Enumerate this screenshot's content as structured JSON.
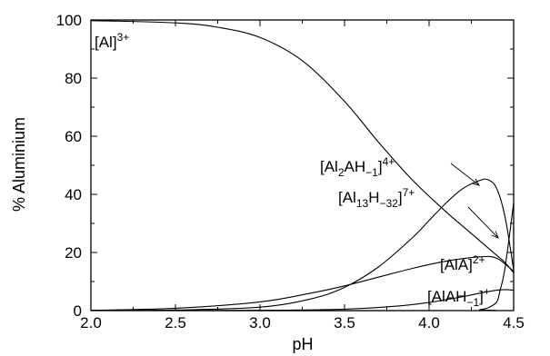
{
  "chart_data": {
    "type": "line",
    "title": "",
    "xlabel": "pH",
    "ylabel": "% Aluminium",
    "xlim": [
      2.0,
      4.5
    ],
    "ylim": [
      0,
      100
    ],
    "xticks": [
      "2.0",
      "2.5",
      "3.0",
      "3.5",
      "4.0",
      "4.5"
    ],
    "yticks": [
      "0",
      "20",
      "40",
      "60",
      "80",
      "100"
    ],
    "grid": false,
    "legend": "none",
    "series": [
      {
        "x": [
          2.0,
          2.5,
          2.75,
          3.0,
          3.25,
          3.5,
          3.7,
          3.9,
          4.1,
          4.2,
          4.3,
          4.4,
          4.45,
          4.5
        ],
        "y": [
          99.8,
          99.0,
          97.5,
          94.0,
          86.0,
          72.0,
          58.0,
          45.0,
          34.0,
          29.0,
          24.0,
          19.0,
          16.5,
          13.0
        ]
      },
      {
        "x": [
          2.0,
          2.5,
          3.0,
          3.3,
          3.5,
          3.7,
          3.9,
          4.0,
          4.1,
          4.2,
          4.3,
          4.35,
          4.4,
          4.45,
          4.5
        ],
        "y": [
          0.0,
          0.2,
          1.2,
          4.0,
          8.0,
          15.0,
          25.0,
          31.0,
          37.0,
          42.0,
          44.8,
          45.0,
          42.0,
          32.0,
          14.0
        ]
      },
      {
        "x": [
          2.0,
          4.2,
          4.3,
          4.35,
          4.4,
          4.42,
          4.45,
          4.5
        ],
        "y": [
          0.0,
          0.0,
          0.3,
          1.0,
          3.0,
          7.0,
          15.0,
          37.0
        ]
      },
      {
        "x": [
          2.0,
          2.5,
          3.0,
          3.3,
          3.5,
          3.7,
          3.9,
          4.1,
          4.3,
          4.4,
          4.5
        ],
        "y": [
          0.1,
          0.8,
          3.0,
          6.0,
          8.5,
          11.5,
          14.5,
          17.0,
          18.5,
          18.0,
          13.5
        ]
      },
      {
        "x": [
          2.0,
          3.0,
          3.5,
          3.8,
          4.0,
          4.2,
          4.3,
          4.4,
          4.45,
          4.5
        ],
        "y": [
          0.0,
          0.1,
          0.5,
          1.5,
          2.8,
          4.8,
          6.0,
          7.0,
          7.2,
          7.0
        ]
      }
    ],
    "annotations": [
      {
        "key": "al",
        "base": "[Al]",
        "sup": "3+"
      },
      {
        "key": "al2ah",
        "parts": [
          [
            "[Al",
            "n"
          ],
          [
            "2",
            "sub"
          ],
          [
            "AH",
            "n"
          ],
          [
            "−1",
            "sub"
          ],
          [
            "]",
            "n"
          ],
          [
            "4+",
            "sup"
          ]
        ]
      },
      {
        "key": "al13",
        "parts": [
          [
            "[Al",
            "n"
          ],
          [
            "13",
            "sub"
          ],
          [
            "H",
            "n"
          ],
          [
            "−32",
            "sub"
          ],
          [
            "]",
            "n"
          ],
          [
            "7+",
            "sup"
          ]
        ]
      },
      {
        "key": "ala",
        "base": "[AlA]",
        "sup": "2+"
      },
      {
        "key": "alah",
        "parts": [
          [
            "[AlAH",
            "n"
          ],
          [
            "−1",
            "sub"
          ],
          [
            "]",
            "n"
          ],
          [
            "+",
            "sup"
          ]
        ]
      }
    ]
  }
}
